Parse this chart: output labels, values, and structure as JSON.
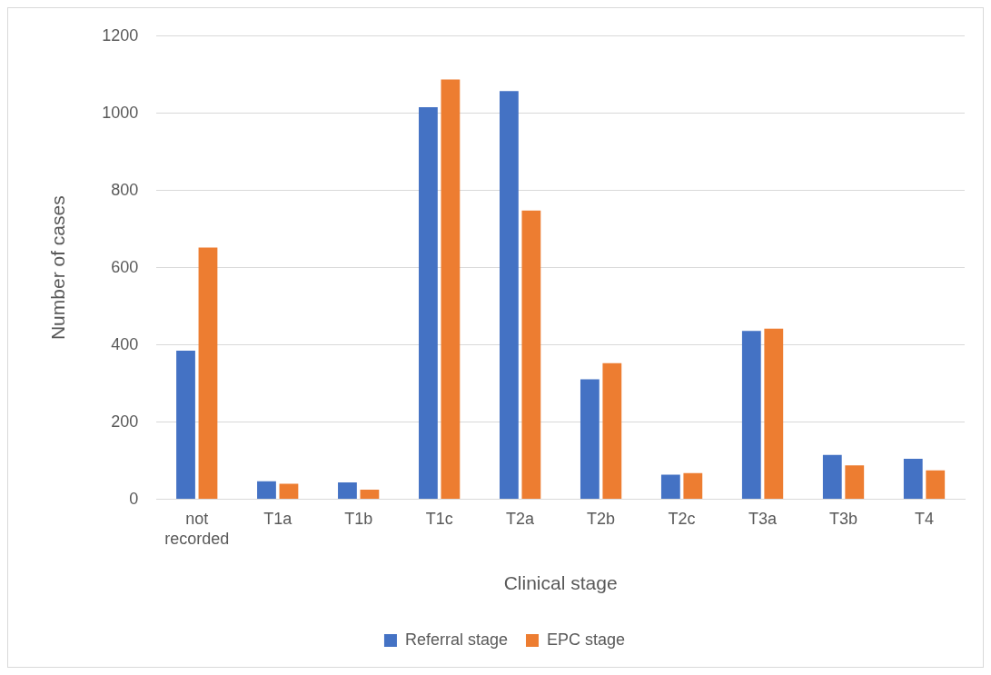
{
  "chart_data": {
    "type": "bar",
    "xlabel": "Clinical stage",
    "ylabel": "Number of cases",
    "categories": [
      "not recorded",
      "T1a",
      "T1b",
      "T1c",
      "T2a",
      "T2b",
      "T2c",
      "T3a",
      "T3b",
      "T4"
    ],
    "series": [
      {
        "name": "Referral stage",
        "color": "#4472c4",
        "values": [
          385,
          47,
          44,
          1016,
          1058,
          311,
          64,
          436,
          115,
          105
        ]
      },
      {
        "name": "EPC stage",
        "color": "#ed7d31",
        "values": [
          652,
          40,
          25,
          1088,
          748,
          353,
          68,
          442,
          88,
          75
        ]
      }
    ],
    "ylim": [
      0,
      1200
    ],
    "yticks": [
      0,
      200,
      400,
      600,
      800,
      1000,
      1200
    ],
    "grid": "y",
    "legend": "bottom"
  }
}
